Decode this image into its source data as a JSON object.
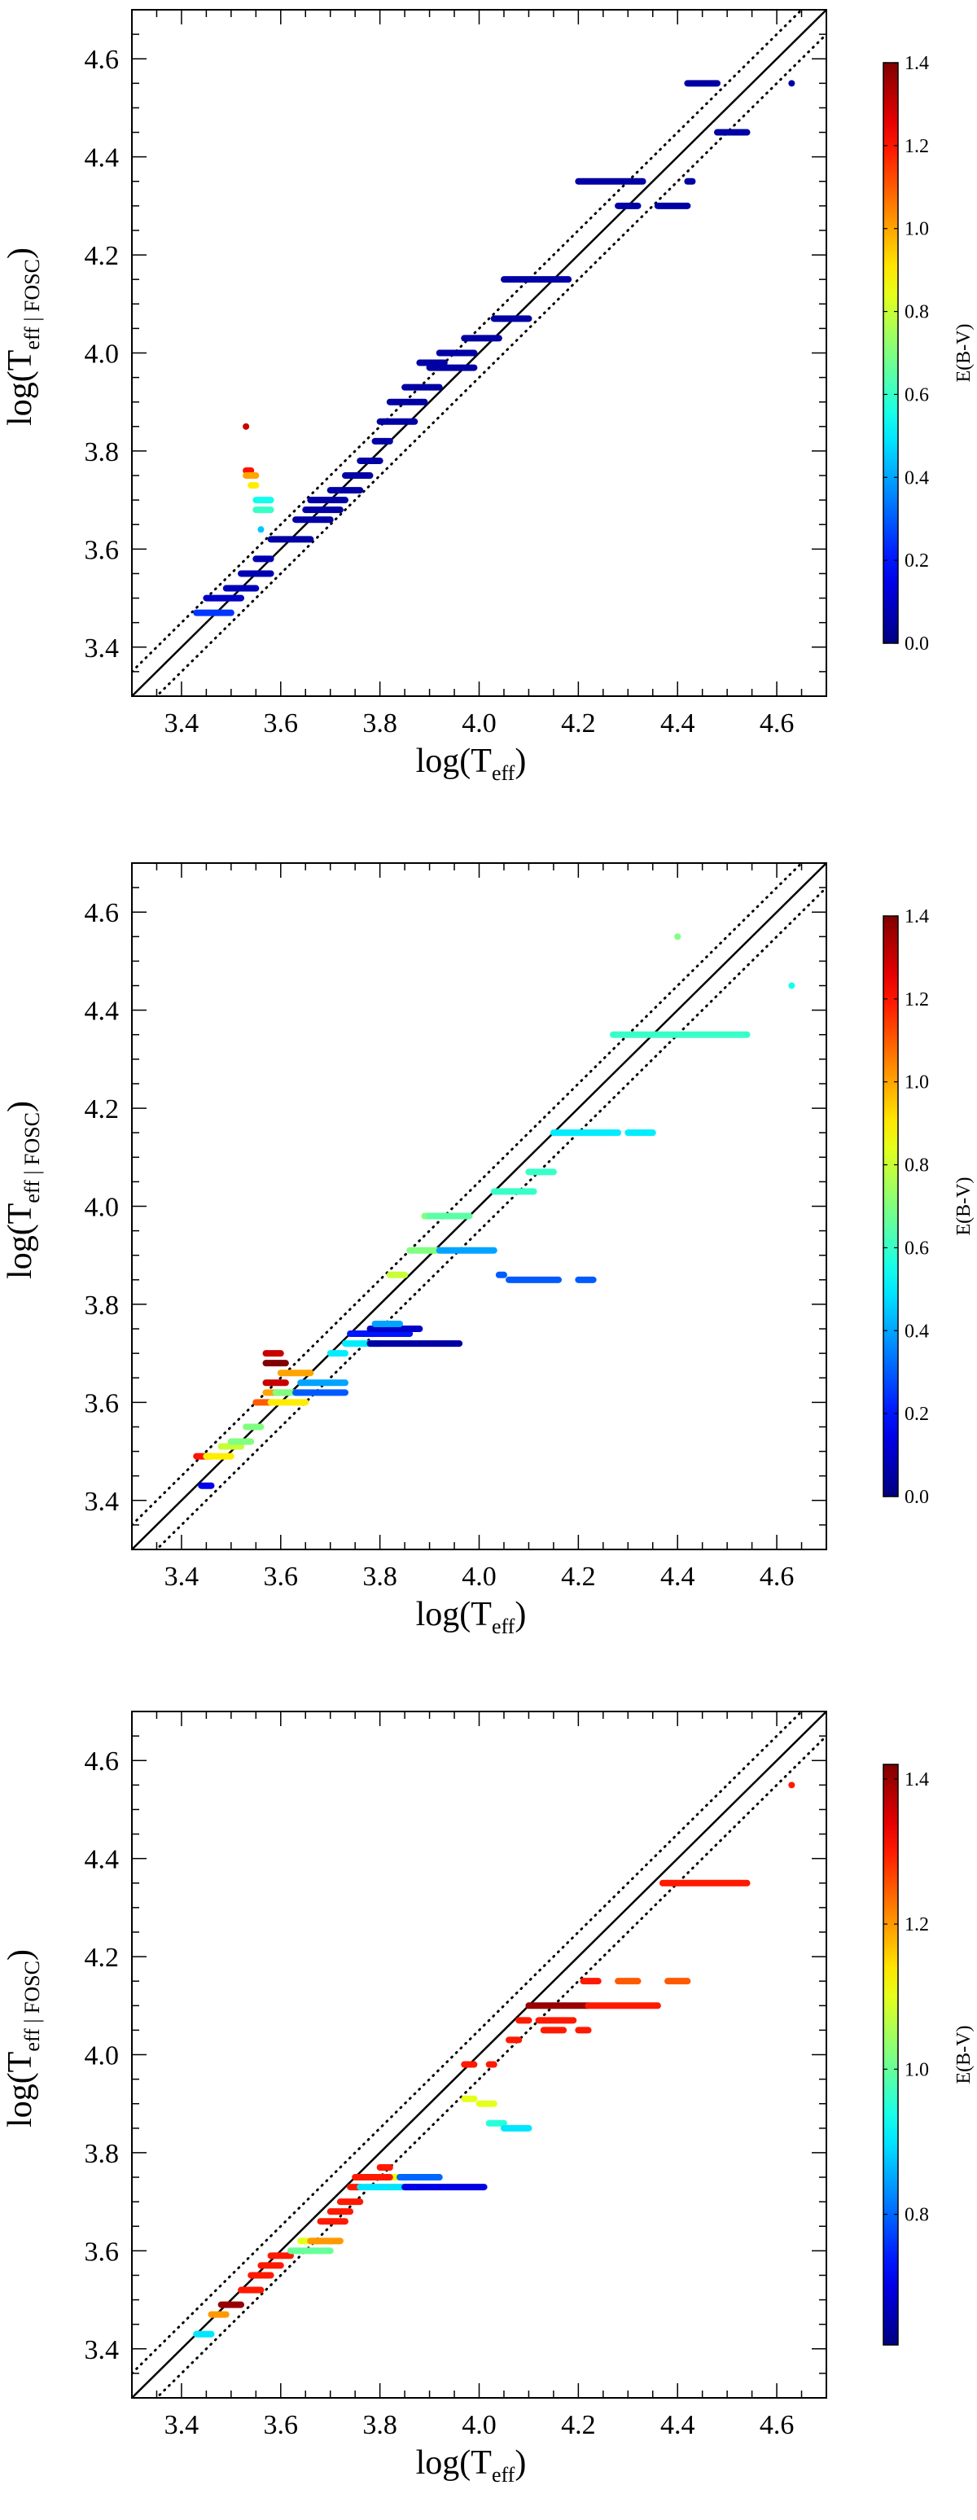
{
  "chart_data": [
    {
      "type": "scatter",
      "xlabel": "log(T_eff)",
      "xlabel_main": "log(T",
      "xlabel_sub": "eff",
      "ylabel": "log(T_eff | FOSC)",
      "ylabel_main": "log(T",
      "ylabel_sub": "eff | FOSC",
      "xlim": [
        3.3,
        4.7
      ],
      "ylim": [
        3.3,
        4.7
      ],
      "xticks": [
        "3.4",
        "3.6",
        "3.8",
        "4.0",
        "4.2",
        "4.4",
        "4.6"
      ],
      "yticks": [
        "3.4",
        "3.6",
        "3.8",
        "4.0",
        "4.2",
        "4.4",
        "4.6"
      ],
      "reference_lines": [
        {
          "style": "solid",
          "offset": 0.0
        },
        {
          "style": "dotted",
          "offset": 0.05
        },
        {
          "style": "dotted",
          "offset": -0.05
        }
      ],
      "colorbar": {
        "label": "E(B-V)",
        "min": 0.0,
        "max": 1.4,
        "ticks": [
          "0.0",
          "0.2",
          "0.4",
          "0.6",
          "0.8",
          "1.0",
          "1.2",
          "1.4"
        ]
      },
      "segments": [
        [
          3.43,
          3.5,
          3.47,
          0.25
        ],
        [
          3.45,
          3.52,
          3.5,
          0.1
        ],
        [
          3.49,
          3.55,
          3.52,
          0.08
        ],
        [
          3.52,
          3.58,
          3.55,
          0.07
        ],
        [
          3.55,
          3.58,
          3.58,
          0.07
        ],
        [
          3.58,
          3.66,
          3.62,
          0.05
        ],
        [
          3.53,
          3.53,
          3.85,
          1.3
        ],
        [
          3.53,
          3.54,
          3.76,
          1.2
        ],
        [
          3.53,
          3.55,
          3.75,
          1.0
        ],
        [
          3.54,
          3.55,
          3.73,
          0.9
        ],
        [
          3.55,
          3.58,
          3.7,
          0.55
        ],
        [
          3.55,
          3.58,
          3.68,
          0.6
        ],
        [
          3.56,
          3.56,
          3.64,
          0.45
        ],
        [
          3.63,
          3.7,
          3.66,
          0.05
        ],
        [
          3.65,
          3.72,
          3.68,
          0.05
        ],
        [
          3.66,
          3.73,
          3.7,
          0.05
        ],
        [
          3.7,
          3.76,
          3.72,
          0.05
        ],
        [
          3.73,
          3.78,
          3.75,
          0.05
        ],
        [
          3.76,
          3.8,
          3.78,
          0.05
        ],
        [
          3.79,
          3.82,
          3.82,
          0.05
        ],
        [
          3.8,
          3.87,
          3.86,
          0.05
        ],
        [
          3.82,
          3.89,
          3.9,
          0.05
        ],
        [
          3.85,
          3.92,
          3.93,
          0.05
        ],
        [
          3.88,
          3.93,
          3.98,
          0.05
        ],
        [
          3.9,
          3.99,
          3.97,
          0.05
        ],
        [
          3.92,
          3.99,
          4.0,
          0.05
        ],
        [
          3.97,
          4.04,
          4.03,
          0.05
        ],
        [
          4.03,
          4.1,
          4.07,
          0.05
        ],
        [
          4.05,
          4.18,
          4.15,
          0.05
        ],
        [
          4.2,
          4.33,
          4.35,
          0.05
        ],
        [
          4.28,
          4.32,
          4.3,
          0.05
        ],
        [
          4.36,
          4.42,
          4.3,
          0.05
        ],
        [
          4.42,
          4.43,
          4.35,
          0.05
        ],
        [
          4.42,
          4.48,
          4.55,
          0.05
        ],
        [
          4.48,
          4.54,
          4.45,
          0.05
        ],
        [
          4.63,
          4.63,
          4.55,
          0.05
        ]
      ]
    },
    {
      "type": "scatter",
      "xlabel": "log(T_eff)",
      "xlabel_main": "log(T",
      "xlabel_sub": "eff",
      "ylabel": "log(T_eff | FOSC)",
      "ylabel_main": "log(T",
      "ylabel_sub": "eff | FOSC",
      "xlim": [
        3.3,
        4.7
      ],
      "ylim": [
        3.3,
        4.7
      ],
      "xticks": [
        "3.4",
        "3.6",
        "3.8",
        "4.0",
        "4.2",
        "4.4",
        "4.6"
      ],
      "yticks": [
        "3.4",
        "3.6",
        "3.8",
        "4.0",
        "4.2",
        "4.4",
        "4.6"
      ],
      "reference_lines": [
        {
          "style": "solid",
          "offset": 0.0
        },
        {
          "style": "dotted",
          "offset": 0.05
        },
        {
          "style": "dotted",
          "offset": -0.05
        }
      ],
      "colorbar": {
        "label": "E(B-V)",
        "min": 0.0,
        "max": 1.4,
        "ticks": [
          "0.0",
          "0.2",
          "0.4",
          "0.6",
          "0.8",
          "1.0",
          "1.2",
          "1.4"
        ]
      },
      "segments": [
        [
          3.44,
          3.46,
          3.43,
          0.15
        ],
        [
          3.43,
          3.46,
          3.49,
          1.2
        ],
        [
          3.45,
          3.5,
          3.49,
          0.9
        ],
        [
          3.48,
          3.52,
          3.51,
          0.8
        ],
        [
          3.5,
          3.54,
          3.52,
          0.7
        ],
        [
          3.53,
          3.56,
          3.55,
          0.7
        ],
        [
          3.55,
          3.58,
          3.6,
          1.1
        ],
        [
          3.58,
          3.65,
          3.6,
          0.9
        ],
        [
          3.57,
          3.61,
          3.62,
          1.0
        ],
        [
          3.59,
          3.65,
          3.62,
          0.7
        ],
        [
          3.63,
          3.73,
          3.62,
          0.3
        ],
        [
          3.64,
          3.73,
          3.64,
          0.4
        ],
        [
          3.57,
          3.61,
          3.64,
          1.3
        ],
        [
          3.6,
          3.66,
          3.66,
          1.0
        ],
        [
          3.57,
          3.61,
          3.68,
          1.4
        ],
        [
          3.57,
          3.6,
          3.7,
          1.3
        ],
        [
          3.7,
          3.73,
          3.7,
          0.5
        ],
        [
          3.73,
          3.8,
          3.72,
          0.5
        ],
        [
          3.78,
          3.96,
          3.72,
          0.05
        ],
        [
          3.74,
          3.86,
          3.74,
          0.2
        ],
        [
          3.78,
          3.88,
          3.75,
          0.1
        ],
        [
          3.79,
          3.84,
          3.76,
          0.4
        ],
        [
          3.82,
          3.85,
          3.86,
          0.8
        ],
        [
          3.86,
          3.92,
          3.91,
          0.7
        ],
        [
          3.92,
          4.03,
          3.91,
          0.4
        ],
        [
          3.89,
          3.98,
          3.98,
          0.7
        ],
        [
          3.9,
          3.98,
          3.98,
          0.65
        ],
        [
          4.04,
          4.05,
          3.86,
          0.3
        ],
        [
          4.06,
          4.16,
          3.85,
          0.3
        ],
        [
          4.2,
          4.23,
          3.85,
          0.3
        ],
        [
          4.03,
          4.07,
          4.03,
          0.6
        ],
        [
          4.07,
          4.11,
          4.03,
          0.6
        ],
        [
          4.1,
          4.15,
          4.07,
          0.6
        ],
        [
          4.15,
          4.28,
          4.15,
          0.5
        ],
        [
          4.3,
          4.35,
          4.15,
          0.5
        ],
        [
          4.27,
          4.54,
          4.35,
          0.6
        ],
        [
          4.4,
          4.4,
          4.55,
          0.7
        ],
        [
          4.63,
          4.63,
          4.45,
          0.55
        ]
      ]
    },
    {
      "type": "scatter",
      "xlabel": "log(T_eff)",
      "xlabel_main": "log(T",
      "xlabel_sub": "eff",
      "ylabel": "log(T_eff | FOSC)",
      "ylabel_main": "log(T",
      "ylabel_sub": "eff | FOSC",
      "xlim": [
        3.3,
        4.7
      ],
      "ylim": [
        3.3,
        4.7
      ],
      "xticks": [
        "3.4",
        "3.6",
        "3.8",
        "4.0",
        "4.2",
        "4.4",
        "4.6"
      ],
      "yticks": [
        "3.4",
        "3.6",
        "3.8",
        "4.0",
        "4.2",
        "4.4",
        "4.6"
      ],
      "reference_lines": [
        {
          "style": "solid",
          "offset": 0.0
        },
        {
          "style": "dotted",
          "offset": 0.05
        },
        {
          "style": "dotted",
          "offset": -0.05
        }
      ],
      "colorbar": {
        "label": "E(B-V)",
        "min": 0.62,
        "max": 1.42,
        "ticks": [
          "0.8",
          "1.0",
          "1.2",
          "1.4"
        ]
      },
      "segments": [
        [
          3.43,
          3.46,
          3.43,
          0.9
        ],
        [
          3.46,
          3.49,
          3.47,
          1.2
        ],
        [
          3.48,
          3.52,
          3.49,
          1.4
        ],
        [
          3.52,
          3.56,
          3.52,
          1.3
        ],
        [
          3.54,
          3.58,
          3.55,
          1.3
        ],
        [
          3.56,
          3.6,
          3.57,
          1.3
        ],
        [
          3.58,
          3.62,
          3.59,
          1.3
        ],
        [
          3.62,
          3.7,
          3.6,
          1.0
        ],
        [
          3.64,
          3.68,
          3.62,
          1.1
        ],
        [
          3.66,
          3.72,
          3.62,
          1.2
        ],
        [
          3.68,
          3.73,
          3.66,
          1.3
        ],
        [
          3.7,
          3.74,
          3.68,
          1.3
        ],
        [
          3.72,
          3.76,
          3.7,
          1.3
        ],
        [
          3.74,
          3.76,
          3.73,
          1.3
        ],
        [
          3.76,
          3.88,
          3.73,
          0.9
        ],
        [
          3.85,
          4.01,
          3.73,
          0.7
        ],
        [
          3.76,
          3.84,
          3.75,
          1.1
        ],
        [
          3.84,
          3.92,
          3.75,
          0.8
        ],
        [
          3.75,
          3.82,
          3.75,
          1.3
        ],
        [
          3.8,
          3.82,
          3.77,
          1.3
        ],
        [
          3.97,
          3.99,
          3.91,
          1.1
        ],
        [
          4.0,
          4.03,
          3.9,
          1.1
        ],
        [
          4.02,
          4.05,
          3.86,
          0.95
        ],
        [
          4.05,
          4.1,
          3.85,
          0.9
        ],
        [
          3.97,
          3.99,
          3.98,
          1.3
        ],
        [
          4.02,
          4.03,
          3.98,
          1.3
        ],
        [
          4.06,
          4.08,
          4.03,
          1.3
        ],
        [
          4.08,
          4.1,
          4.07,
          1.3
        ],
        [
          4.12,
          4.19,
          4.07,
          1.3
        ],
        [
          4.13,
          4.17,
          4.05,
          1.3
        ],
        [
          4.2,
          4.22,
          4.05,
          1.3
        ],
        [
          4.1,
          4.22,
          4.1,
          1.4
        ],
        [
          4.22,
          4.36,
          4.1,
          1.3
        ],
        [
          4.21,
          4.24,
          4.15,
          1.3
        ],
        [
          4.28,
          4.32,
          4.15,
          1.25
        ],
        [
          4.38,
          4.42,
          4.15,
          1.25
        ],
        [
          4.37,
          4.54,
          4.35,
          1.3
        ],
        [
          4.63,
          4.63,
          4.55,
          1.3
        ]
      ]
    }
  ]
}
